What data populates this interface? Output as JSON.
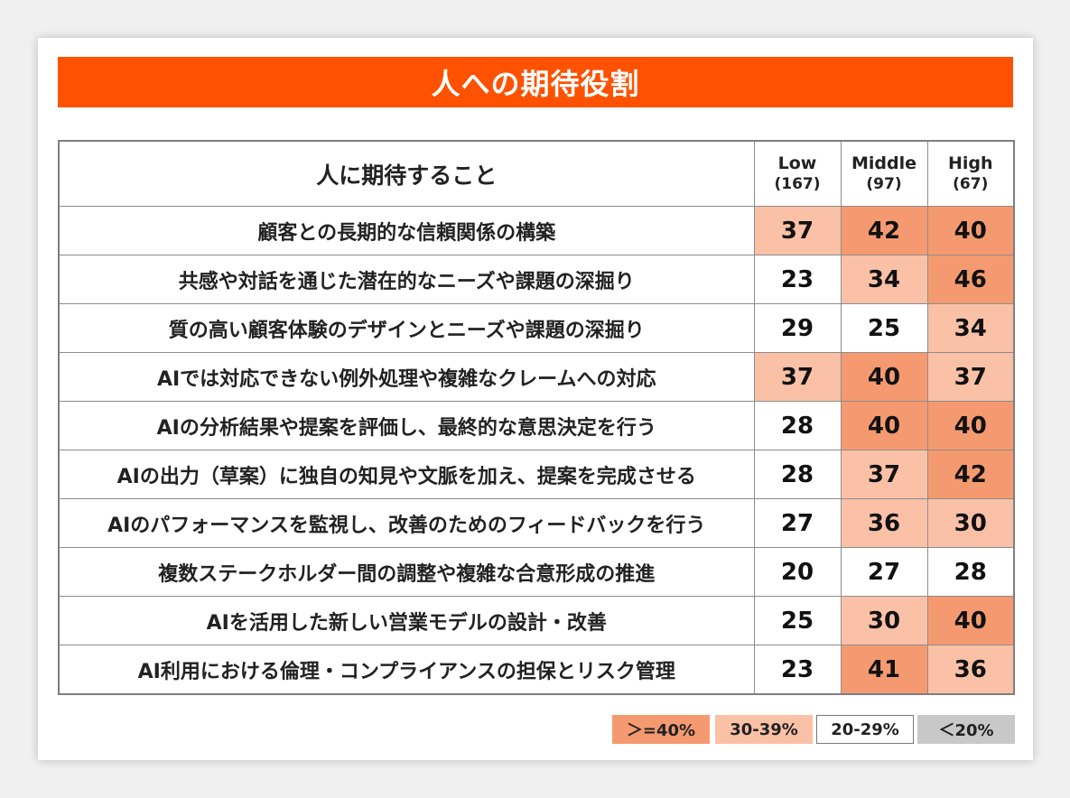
{
  "title": "人への期待役割",
  "chart_data": {
    "type": "table",
    "header_label": "人に期待すること",
    "groups": [
      {
        "name": "Low",
        "n": "(167)"
      },
      {
        "name": "Middle",
        "n": "(97)"
      },
      {
        "name": "High",
        "n": "(67)"
      }
    ],
    "rows": [
      {
        "label": "顧客との長期的な信頼関係の構築",
        "values": [
          37,
          42,
          40
        ]
      },
      {
        "label": "共感や対話を通じた潜在的なニーズや課題の深掘り",
        "values": [
          23,
          34,
          46
        ]
      },
      {
        "label": "質の高い顧客体験のデザインとニーズや課題の深掘り",
        "values": [
          29,
          25,
          34
        ]
      },
      {
        "label": "AIでは対応できない例外処理や複雑なクレームへの対応",
        "values": [
          37,
          40,
          37
        ]
      },
      {
        "label": "AIの分析結果や提案を評価し、最終的な意思決定を行う",
        "values": [
          28,
          40,
          40
        ]
      },
      {
        "label": "AIの出力（草案）に独自の知見や文脈を加え、提案を完成させる",
        "values": [
          28,
          37,
          42
        ]
      },
      {
        "label": "AIのパフォーマンスを監視し、改善のためのフィードバックを行う",
        "values": [
          27,
          36,
          30
        ]
      },
      {
        "label": "複数ステークホルダー間の調整や複雑な合意形成の推進",
        "values": [
          20,
          27,
          28
        ]
      },
      {
        "label": "AIを活用した新しい営業モデルの設計・改善",
        "values": [
          25,
          30,
          40
        ]
      },
      {
        "label": "AI利用における倫理・コンプライアンスの担保とリスク管理",
        "values": [
          23,
          41,
          36
        ]
      }
    ],
    "legend": [
      {
        "label": "＞=40%",
        "color": "#f59a70"
      },
      {
        "label": "30-39%",
        "color": "#fac1a7"
      },
      {
        "label": "20-29%",
        "color": "#ffffff"
      },
      {
        "label": "＜20%",
        "color": "#c8c8c8"
      }
    ]
  },
  "colors": {
    "accent": "#fe5200",
    "high": "#f59a70",
    "mid": "#fac1a7",
    "low": "#ffffff",
    "very_low": "#c8c8c8"
  }
}
